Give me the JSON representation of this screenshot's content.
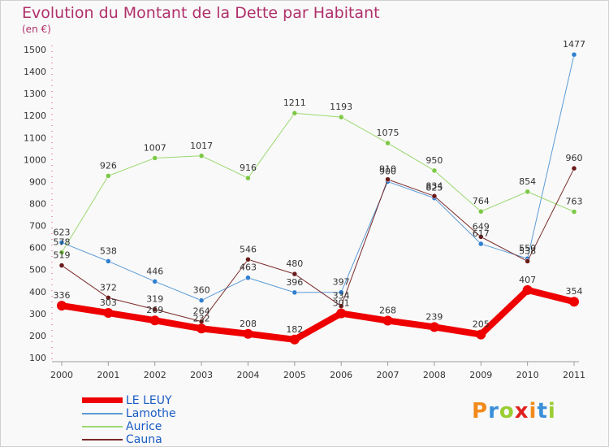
{
  "title": "Evolution du Montant de la Dette par Habitant",
  "subtitle": "(en €)",
  "logo": {
    "letters": [
      "P",
      "r",
      "o",
      "x",
      "i",
      "t",
      "i"
    ],
    "colors": [
      "#f28a1b",
      "#3a8fd8",
      "#9acd32",
      "#e02020",
      "#f28a1b",
      "#3a8fd8",
      "#9acd32"
    ]
  },
  "chart_data": {
    "type": "line",
    "title": "Evolution du Montant de la Dette par Habitant",
    "subtitle": "(en €)",
    "xlabel": "",
    "ylabel": "",
    "x": [
      "2000",
      "2001",
      "2002",
      "2003",
      "2004",
      "2005",
      "2006",
      "2007",
      "2008",
      "2009",
      "2010",
      "2011"
    ],
    "ylim": [
      100,
      1500
    ],
    "yticks": [
      100,
      200,
      300,
      400,
      500,
      600,
      700,
      800,
      900,
      1000,
      1100,
      1200,
      1300,
      1400,
      1500
    ],
    "grid": false,
    "legend": "bottom-left",
    "series": [
      {
        "name": "Lamothe",
        "color": "#5b9bd5",
        "marker": "#2f7fd0",
        "width": 1,
        "values": [
          623,
          538,
          446,
          360,
          463,
          396,
          397,
          900,
          825,
          617,
          550,
          1477
        ]
      },
      {
        "name": "Aurice",
        "color": "#9bd870",
        "marker": "#7cc844",
        "width": 1,
        "values": [
          578,
          926,
          1007,
          1017,
          916,
          1211,
          1193,
          1075,
          950,
          764,
          854,
          763
        ]
      },
      {
        "name": "Cauna",
        "color": "#7a2a2a",
        "marker": "#6a1a1a",
        "width": 1,
        "values": [
          519,
          372,
          319,
          264,
          546,
          480,
          334,
          910,
          834,
          649,
          538,
          960
        ]
      },
      {
        "name": "LE LEUY",
        "color": "#ee0000",
        "marker": "#ee0000",
        "width": 8,
        "values": [
          336,
          303,
          269,
          232,
          208,
          182,
          301,
          268,
          239,
          205,
          407,
          354
        ]
      }
    ],
    "legend_order": [
      "LE LEUY",
      "Lamothe",
      "Aurice",
      "Cauna"
    ]
  }
}
